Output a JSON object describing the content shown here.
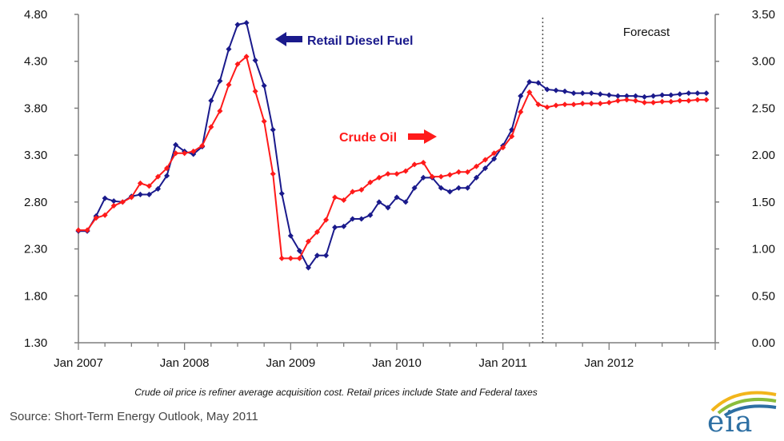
{
  "chart_data": {
    "type": "line",
    "title": "",
    "left_axis": {
      "ticks": [
        "4.80",
        "4.30",
        "3.80",
        "3.30",
        "2.80",
        "2.30",
        "1.80",
        "1.30"
      ],
      "range": [
        1.3,
        4.8
      ]
    },
    "right_axis": {
      "ticks": [
        "3.50",
        "3.00",
        "2.50",
        "2.00",
        "1.50",
        "1.00",
        "0.50",
        "0.00"
      ],
      "range": [
        0.0,
        3.5
      ]
    },
    "x_axis": {
      "tick_labels": [
        "Jan 2007",
        "Jan 2008",
        "Jan 2009",
        "Jan 2010",
        "Jan 2011",
        "Jan 2012"
      ],
      "start": "Jan 2007",
      "end": "Dec 2012"
    },
    "forecast_start": "Apr 2011",
    "forecast_label": "Forecast",
    "series": [
      {
        "name": "Retail Diesel Fuel",
        "axis": "left",
        "color": "#1a1a8c",
        "values": [
          2.49,
          2.49,
          2.65,
          2.84,
          2.81,
          2.8,
          2.86,
          2.88,
          2.88,
          2.94,
          3.08,
          3.41,
          3.34,
          3.31,
          3.39,
          3.88,
          4.09,
          4.43,
          4.69,
          4.71,
          4.31,
          4.04,
          3.57,
          2.89,
          2.44,
          2.28,
          2.1,
          2.23,
          2.23,
          2.53,
          2.54,
          2.62,
          2.62,
          2.66,
          2.8,
          2.74,
          2.85,
          2.8,
          2.95,
          3.06,
          3.06,
          2.95,
          2.91,
          2.95,
          2.95,
          3.06,
          3.16,
          3.26,
          3.4,
          3.57,
          3.93,
          4.08,
          4.07,
          4.0,
          3.99,
          3.98,
          3.96,
          3.96,
          3.96,
          3.95,
          3.94,
          3.93,
          3.93,
          3.93,
          3.92,
          3.93,
          3.94,
          3.94,
          3.95,
          3.96,
          3.96,
          3.96
        ]
      },
      {
        "name": "Crude Oil",
        "axis": "right",
        "color": "#ff1a1a",
        "values": [
          1.2,
          1.2,
          1.33,
          1.36,
          1.46,
          1.5,
          1.55,
          1.7,
          1.67,
          1.77,
          1.86,
          2.02,
          2.02,
          2.04,
          2.1,
          2.3,
          2.47,
          2.75,
          2.97,
          3.05,
          2.68,
          2.36,
          1.8,
          0.9,
          0.9,
          0.9,
          1.08,
          1.18,
          1.31,
          1.55,
          1.52,
          1.61,
          1.63,
          1.71,
          1.76,
          1.8,
          1.8,
          1.83,
          1.9,
          1.92,
          1.77,
          1.77,
          1.79,
          1.82,
          1.82,
          1.88,
          1.95,
          2.02,
          2.08,
          2.2,
          2.46,
          2.67,
          2.54,
          2.51,
          2.53,
          2.54,
          2.54,
          2.55,
          2.55,
          2.55,
          2.56,
          2.58,
          2.59,
          2.58,
          2.56,
          2.56,
          2.57,
          2.57,
          2.58,
          2.58,
          2.59,
          2.59
        ]
      }
    ],
    "annotations": [
      {
        "text": "Retail Diesel Fuel",
        "arrow": "left",
        "color": "#1a1a8c"
      },
      {
        "text": "Crude Oil",
        "arrow": "right",
        "color": "#ff1a1a"
      }
    ],
    "grid": false
  },
  "footnote": "Crude oil price is refiner average acquisition cost.  Retail prices include State and Federal taxes",
  "source": "Source: Short-Term Energy Outlook, May 2011",
  "logo": {
    "text": "eia",
    "colors": [
      "#2d6fa3",
      "#f2b51b",
      "#8bbd3c"
    ]
  }
}
